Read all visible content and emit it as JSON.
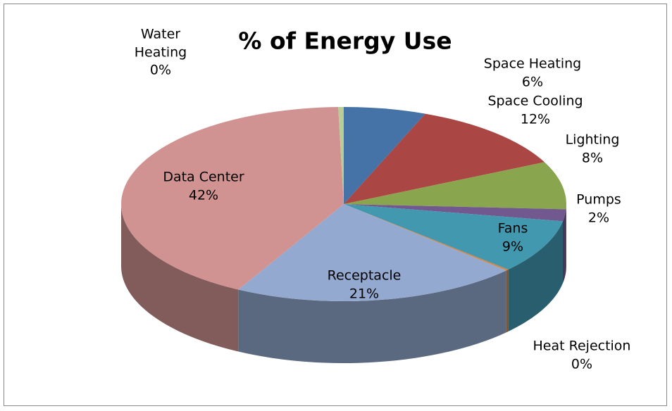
{
  "chart_data": {
    "type": "pie3d",
    "title": "% of Energy Use",
    "categories": [
      "Space Heating",
      "Space Cooling",
      "Lighting",
      "Pumps",
      "Fans",
      "Heat Rejection",
      "Receptacle",
      "Data Center",
      "Water Heating"
    ],
    "values": [
      6,
      12,
      8,
      2,
      9,
      0.2,
      21,
      42,
      0.4
    ],
    "value_labels": [
      "6%",
      "12%",
      "8%",
      "2%",
      "9%",
      "0%",
      "21%",
      "42%",
      "0%"
    ],
    "colors": [
      "#4572a7",
      "#aa4643",
      "#89a54e",
      "#71588f",
      "#4198af",
      "#db843d",
      "#93a9cf",
      "#d19392",
      "#b9cd96"
    ],
    "legend": false
  }
}
